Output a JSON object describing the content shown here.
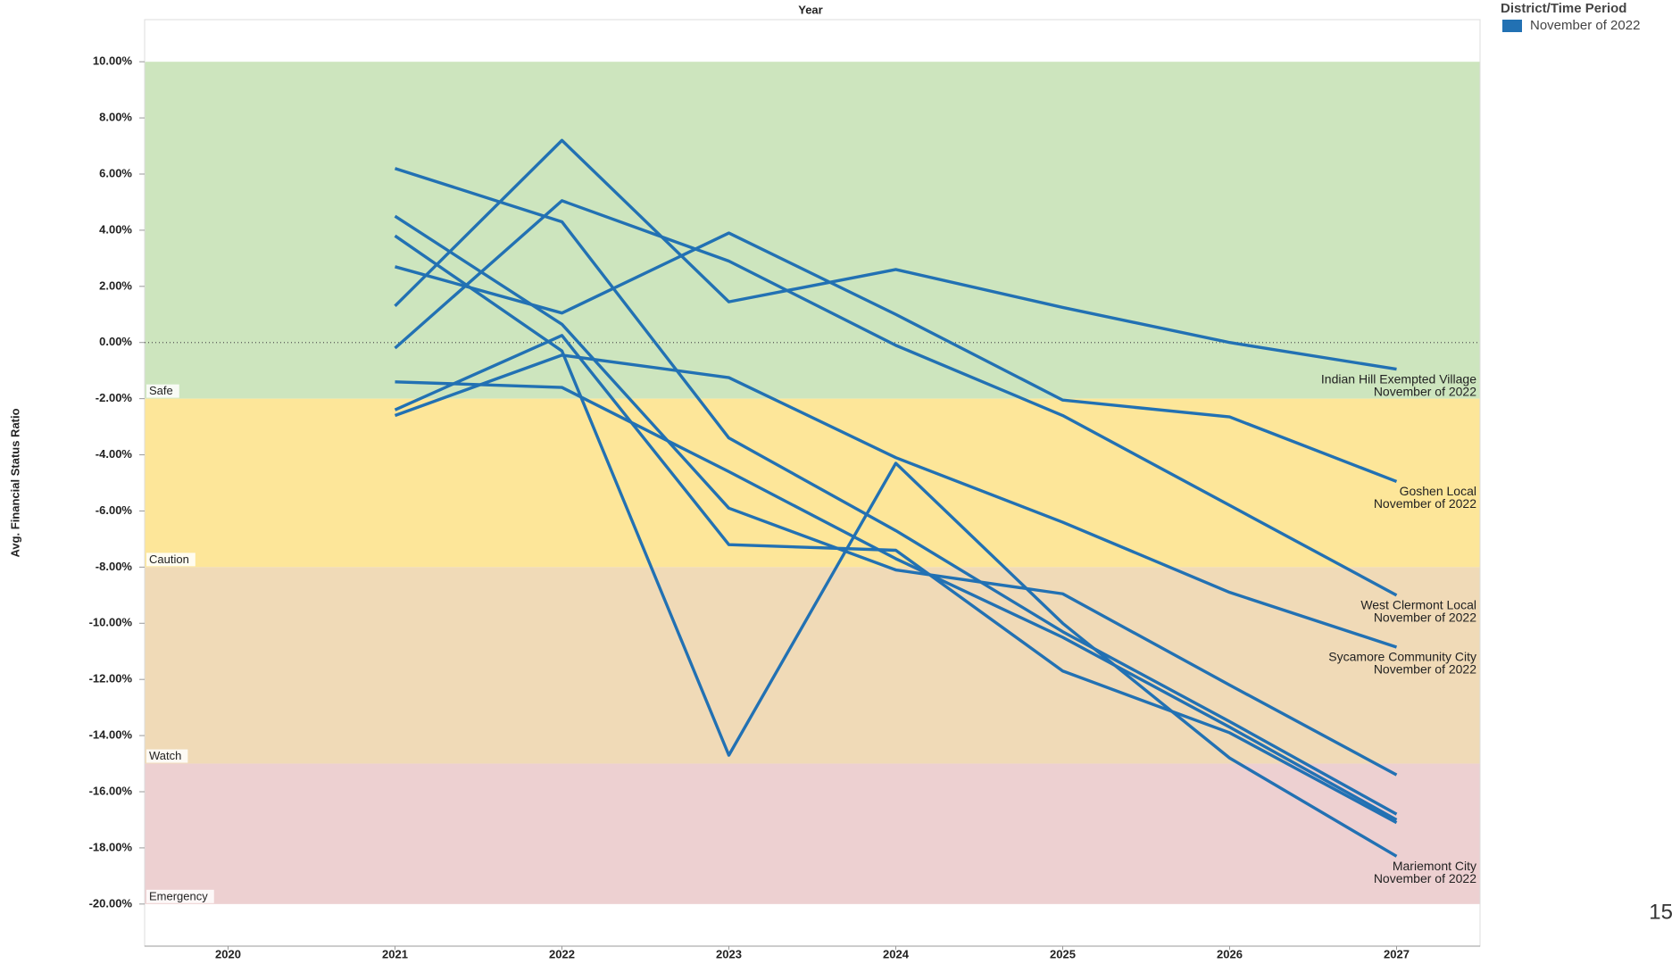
{
  "chart_data": {
    "type": "line",
    "x_title": "Year",
    "y_title": "Avg. Financial Status Ratio",
    "x": [
      2021,
      2022,
      2023,
      2024,
      2025,
      2026,
      2027
    ],
    "xlim": [
      2019.5,
      2027.5
    ],
    "xticks": [
      2020,
      2021,
      2022,
      2023,
      2024,
      2025,
      2026,
      2027
    ],
    "ylim": [
      -21.5,
      11.5
    ],
    "yticks": [
      {
        "value": 10,
        "label": "10.00%"
      },
      {
        "value": 8,
        "label": "8.00%"
      },
      {
        "value": 6,
        "label": "6.00%"
      },
      {
        "value": 4,
        "label": "4.00%"
      },
      {
        "value": 2,
        "label": "2.00%"
      },
      {
        "value": 0,
        "label": "0.00%"
      },
      {
        "value": -2,
        "label": "-2.00%"
      },
      {
        "value": -4,
        "label": "-4.00%"
      },
      {
        "value": -6,
        "label": "-6.00%"
      },
      {
        "value": -8,
        "label": "-8.00%"
      },
      {
        "value": -10,
        "label": "-10.00%"
      },
      {
        "value": -12,
        "label": "-12.00%"
      },
      {
        "value": -14,
        "label": "-14.00%"
      },
      {
        "value": -16,
        "label": "-16.00%"
      },
      {
        "value": -18,
        "label": "-18.00%"
      },
      {
        "value": -20,
        "label": "-20.00%"
      }
    ],
    "bands": [
      {
        "label": "Safe",
        "from": -2,
        "to": 10,
        "color": "#cde5be"
      },
      {
        "label": "Caution",
        "from": -8,
        "to": -2,
        "color": "#fde699"
      },
      {
        "label": "Watch",
        "from": -15,
        "to": -8,
        "color": "#f0dab7"
      },
      {
        "label": "Emergency",
        "from": -20,
        "to": -15,
        "color": "#edd0d1"
      }
    ],
    "reference_line": 0,
    "color": "#2271b3",
    "series": [
      {
        "values": [
          1.3,
          7.2,
          1.45,
          2.6,
          1.25,
          0.0,
          -0.95
        ],
        "label": [
          "Indian Hill Exempted Village",
          "November of 2022"
        ]
      },
      {
        "values": [
          2.7,
          1.05,
          3.9,
          1.0,
          -2.05,
          -2.65,
          -4.95
        ],
        "label": [
          "Goshen Local",
          "November of 2022"
        ]
      },
      {
        "values": [
          -0.2,
          5.05,
          2.9,
          -0.1,
          -2.6,
          -5.8,
          -9.0
        ],
        "label": [
          "West Clermont Local",
          "November of 2022"
        ]
      },
      {
        "values": [
          -2.6,
          -0.45,
          -1.25,
          -4.1,
          -6.4,
          -8.9,
          -10.85
        ],
        "label": [
          "Sycamore Community City",
          "November of 2022"
        ]
      },
      {
        "values": [
          3.8,
          -0.3,
          -14.7,
          -4.3,
          -10.0,
          -14.8,
          -18.3
        ],
        "label": [
          "Mariemont City",
          "November of 2022"
        ]
      },
      {
        "values": [
          6.2,
          4.3,
          -3.4,
          -6.7,
          -10.3,
          -13.5,
          -16.8
        ]
      },
      {
        "values": [
          4.5,
          0.65,
          -5.9,
          -8.1,
          -8.95,
          -12.2,
          -15.4
        ]
      },
      {
        "values": [
          -1.4,
          -1.6,
          -4.6,
          -7.7,
          -10.5,
          -13.7,
          -17.0
        ]
      },
      {
        "values": [
          -2.4,
          0.25,
          -7.2,
          -7.4,
          -11.7,
          -13.9,
          -17.1
        ]
      }
    ],
    "legend": {
      "title": "District/Time Period",
      "entries": [
        {
          "name": "November of 2022",
          "color": "#2271b3"
        }
      ]
    },
    "page_number": "15"
  }
}
